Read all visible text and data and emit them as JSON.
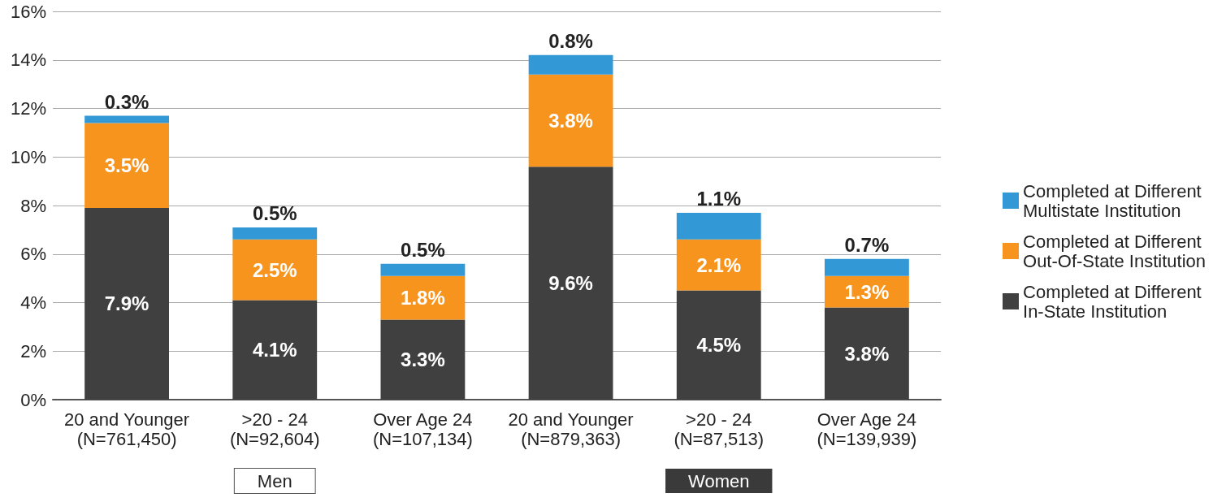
{
  "chart_data": {
    "type": "bar",
    "stacked": true,
    "categories": [
      "20 and Younger\n(N=761,450)",
      ">20 - 24\n(N=92,604)",
      "Over Age 24\n(N=107,134)",
      "20 and Younger\n(N=879,363)",
      ">20 - 24\n(N=87,513)",
      "Over Age 24\n(N=139,939)"
    ],
    "series": [
      {
        "name": "Completed at Different\nIn-State Institution",
        "color": "#404040",
        "values": [
          7.9,
          4.1,
          3.3,
          9.6,
          4.5,
          3.8
        ],
        "value_labels": [
          "7.9%",
          "4.1%",
          "3.3%",
          "9.6%",
          "4.5%",
          "3.8%"
        ]
      },
      {
        "name": "Completed at Different\nOut-Of-State Institution",
        "color": "#f7941d",
        "values": [
          3.5,
          2.5,
          1.8,
          3.8,
          2.1,
          1.3
        ],
        "value_labels": [
          "3.5%",
          "2.5%",
          "1.8%",
          "3.8%",
          "2.1%",
          "1.3%"
        ]
      },
      {
        "name": "Completed at Different\nMultistate Institution",
        "color": "#3399d6",
        "values": [
          0.3,
          0.5,
          0.5,
          0.8,
          1.1,
          0.7
        ],
        "value_labels": [
          "0.3%",
          "0.5%",
          "0.5%",
          "0.8%",
          "1.1%",
          "0.7%"
        ]
      }
    ],
    "ylim": [
      0,
      16
    ],
    "yticks": [
      {
        "value": 0,
        "label": "0%"
      },
      {
        "value": 2,
        "label": "2%"
      },
      {
        "value": 4,
        "label": "4%"
      },
      {
        "value": 6,
        "label": "6%"
      },
      {
        "value": 8,
        "label": "8%"
      },
      {
        "value": 10,
        "label": "10%"
      },
      {
        "value": 12,
        "label": "12%"
      },
      {
        "value": 14,
        "label": "14%"
      },
      {
        "value": 16,
        "label": "16%"
      }
    ],
    "grid": "y",
    "legend": "right",
    "annotations": [
      "Men",
      "Women"
    ]
  }
}
